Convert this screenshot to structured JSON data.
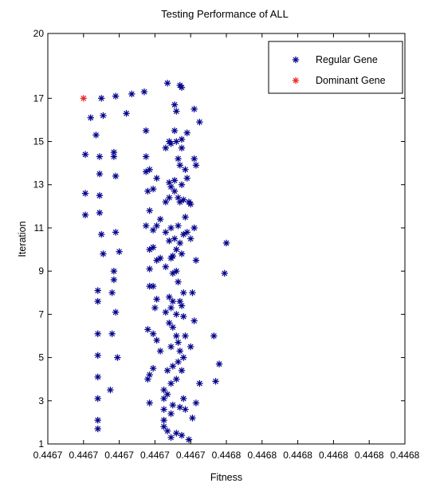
{
  "chart_data": {
    "type": "scatter",
    "title": "Testing Performance of ALL",
    "xlabel": "Fitness",
    "ylabel": "Iteration",
    "xlim": [
      0.44665,
      0.44685
    ],
    "ylim": [
      1,
      20
    ],
    "x_tick_values": [
      0.44665,
      0.44667,
      0.44669,
      0.44671,
      0.44673,
      0.44675,
      0.44677,
      0.44679,
      0.44681,
      0.44683,
      0.44685
    ],
    "x_tick_labels": [
      "0.4467",
      "0.4467",
      "0.4467",
      "0.4467",
      "0.4467",
      "0.4468",
      "0.4468",
      "0.4468",
      "0.4468",
      "0.4468",
      "0.4468"
    ],
    "y_ticks": [
      1,
      3,
      5,
      7,
      9,
      11,
      13,
      15,
      17,
      20
    ],
    "grid": false,
    "legend_position": "top-right",
    "colors": {
      "regular": "#00008b",
      "dominant": "#e8251f"
    },
    "series": [
      {
        "name": "Regular Gene",
        "marker": "asterisk",
        "points": [
          [
            0.446674,
            16.1
          ],
          [
            0.446677,
            15.3
          ],
          [
            0.44668,
            17.0
          ],
          [
            0.446681,
            16.2
          ],
          [
            0.446688,
            17.1
          ],
          [
            0.446694,
            16.3
          ],
          [
            0.446697,
            17.2
          ],
          [
            0.446704,
            17.3
          ],
          [
            0.446717,
            17.7
          ],
          [
            0.446724,
            17.6
          ],
          [
            0.446725,
            17.5
          ],
          [
            0.446671,
            14.4
          ],
          [
            0.446671,
            12.6
          ],
          [
            0.446671,
            11.6
          ],
          [
            0.446679,
            14.3
          ],
          [
            0.446679,
            13.5
          ],
          [
            0.446679,
            12.5
          ],
          [
            0.446679,
            11.7
          ],
          [
            0.446687,
            14.5
          ],
          [
            0.446687,
            14.3
          ],
          [
            0.446688,
            13.4
          ],
          [
            0.44668,
            10.7
          ],
          [
            0.446681,
            9.8
          ],
          [
            0.446688,
            10.8
          ],
          [
            0.44669,
            9.9
          ],
          [
            0.446687,
            9.0
          ],
          [
            0.446687,
            8.6
          ],
          [
            0.446686,
            8.0
          ],
          [
            0.446678,
            8.1
          ],
          [
            0.446678,
            7.6
          ],
          [
            0.446678,
            6.1
          ],
          [
            0.446678,
            5.1
          ],
          [
            0.446678,
            4.1
          ],
          [
            0.446678,
            3.1
          ],
          [
            0.446678,
            2.1
          ],
          [
            0.446678,
            1.7
          ],
          [
            0.446688,
            7.1
          ],
          [
            0.446686,
            6.1
          ],
          [
            0.446689,
            5.0
          ],
          [
            0.446685,
            3.5
          ],
          [
            0.446705,
            15.5
          ],
          [
            0.446705,
            14.3
          ],
          [
            0.446705,
            13.6
          ],
          [
            0.446706,
            12.7
          ],
          [
            0.446705,
            11.1
          ],
          [
            0.446707,
            13.7
          ],
          [
            0.446707,
            11.8
          ],
          [
            0.446707,
            10.0
          ],
          [
            0.446707,
            9.1
          ],
          [
            0.446707,
            8.3
          ],
          [
            0.446706,
            6.3
          ],
          [
            0.446707,
            4.2
          ],
          [
            0.446706,
            4.0
          ],
          [
            0.446707,
            2.9
          ],
          [
            0.446709,
            12.8
          ],
          [
            0.446711,
            13.3
          ],
          [
            0.446709,
            10.9
          ],
          [
            0.446709,
            10.1
          ],
          [
            0.446709,
            8.3
          ],
          [
            0.44671,
            7.3
          ],
          [
            0.446709,
            6.1
          ],
          [
            0.446709,
            4.5
          ],
          [
            0.446711,
            11.1
          ],
          [
            0.446711,
            9.5
          ],
          [
            0.446711,
            7.7
          ],
          [
            0.446711,
            5.8
          ],
          [
            0.446713,
            11.4
          ],
          [
            0.446713,
            9.6
          ],
          [
            0.446713,
            5.3
          ],
          [
            0.446716,
            14.7
          ],
          [
            0.446716,
            12.2
          ],
          [
            0.446716,
            10.8
          ],
          [
            0.446716,
            9.2
          ],
          [
            0.446716,
            7.1
          ],
          [
            0.446715,
            3.5
          ],
          [
            0.446715,
            3.1
          ],
          [
            0.446715,
            2.6
          ],
          [
            0.446715,
            2.1
          ],
          [
            0.446715,
            1.8
          ],
          [
            0.446718,
            15.0
          ],
          [
            0.446718,
            13.1
          ],
          [
            0.446718,
            12.4
          ],
          [
            0.446718,
            10.4
          ],
          [
            0.446718,
            7.8
          ],
          [
            0.446718,
            6.6
          ],
          [
            0.446717,
            4.4
          ],
          [
            0.446717,
            3.3
          ],
          [
            0.446717,
            1.6
          ],
          [
            0.446719,
            14.9
          ],
          [
            0.446719,
            12.9
          ],
          [
            0.446719,
            11.0
          ],
          [
            0.446719,
            9.6
          ],
          [
            0.446719,
            7.3
          ],
          [
            0.446719,
            5.5
          ],
          [
            0.446719,
            3.8
          ],
          [
            0.446719,
            2.4
          ],
          [
            0.446719,
            1.3
          ],
          [
            0.446721,
            16.7
          ],
          [
            0.446721,
            15.5
          ],
          [
            0.446721,
            13.2
          ],
          [
            0.446721,
            12.7
          ],
          [
            0.446721,
            10.5
          ],
          [
            0.44672,
            9.7
          ],
          [
            0.44672,
            8.9
          ],
          [
            0.44672,
            7.6
          ],
          [
            0.44672,
            6.4
          ],
          [
            0.44672,
            4.6
          ],
          [
            0.44672,
            2.8
          ],
          [
            0.446722,
            16.4
          ],
          [
            0.446722,
            15.0
          ],
          [
            0.446722,
            10.0
          ],
          [
            0.446722,
            9.0
          ],
          [
            0.446722,
            7.0
          ],
          [
            0.446722,
            6.0
          ],
          [
            0.446722,
            4.0
          ],
          [
            0.446722,
            1.5
          ],
          [
            0.446723,
            14.2
          ],
          [
            0.446723,
            12.4
          ],
          [
            0.446723,
            11.1
          ],
          [
            0.446723,
            8.5
          ],
          [
            0.446723,
            5.7
          ],
          [
            0.446723,
            4.8
          ],
          [
            0.446724,
            13.9
          ],
          [
            0.446724,
            12.2
          ],
          [
            0.446724,
            10.3
          ],
          [
            0.446724,
            7.6
          ],
          [
            0.446724,
            5.3
          ],
          [
            0.446724,
            2.7
          ],
          [
            0.446725,
            14.7
          ],
          [
            0.446725,
            15.1
          ],
          [
            0.446725,
            13.0
          ],
          [
            0.446725,
            9.8
          ],
          [
            0.446725,
            7.4
          ],
          [
            0.446725,
            4.4
          ],
          [
            0.446725,
            1.4
          ],
          [
            0.446726,
            12.3
          ],
          [
            0.446726,
            10.7
          ],
          [
            0.446726,
            8.0
          ],
          [
            0.446726,
            6.9
          ],
          [
            0.446726,
            5.0
          ],
          [
            0.446726,
            3.1
          ],
          [
            0.446727,
            13.7
          ],
          [
            0.446727,
            11.5
          ],
          [
            0.446727,
            6.0
          ],
          [
            0.446727,
            2.6
          ],
          [
            0.446728,
            15.4
          ],
          [
            0.446728,
            13.3
          ],
          [
            0.446728,
            10.8
          ],
          [
            0.446729,
            12.2
          ],
          [
            0.446729,
            1.2
          ],
          [
            0.44673,
            12.1
          ],
          [
            0.44673,
            10.5
          ],
          [
            0.44673,
            5.5
          ],
          [
            0.446731,
            8.0
          ],
          [
            0.446731,
            2.2
          ],
          [
            0.446732,
            16.5
          ],
          [
            0.446732,
            14.2
          ],
          [
            0.446732,
            11.0
          ],
          [
            0.446732,
            6.7
          ],
          [
            0.446733,
            13.9
          ],
          [
            0.446733,
            9.5
          ],
          [
            0.446733,
            2.9
          ],
          [
            0.446735,
            15.9
          ],
          [
            0.446735,
            3.8
          ],
          [
            0.446743,
            6.0
          ],
          [
            0.446744,
            3.9
          ],
          [
            0.446746,
            4.7
          ],
          [
            0.446749,
            8.9
          ],
          [
            0.44675,
            10.3
          ]
        ]
      },
      {
        "name": "Dominant Gene",
        "marker": "asterisk",
        "points": [
          [
            0.44667,
            17.0
          ]
        ]
      }
    ]
  }
}
